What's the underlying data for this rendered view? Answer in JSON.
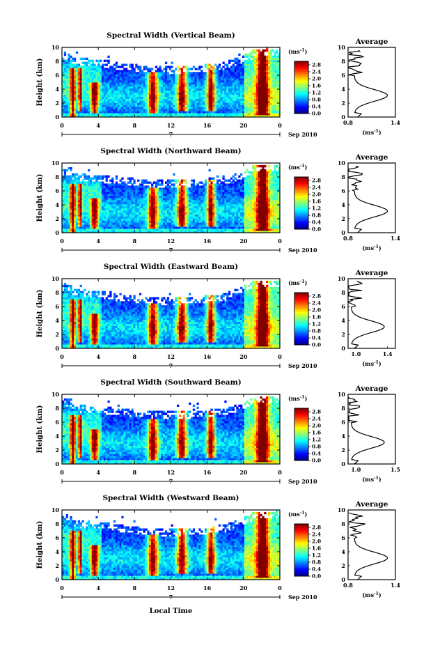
{
  "figure": {
    "x_axis_label": "Local Time",
    "date_label": "Sep 2010",
    "day_label": "7"
  },
  "chart_data": [
    {
      "type": "heatmap",
      "title": "Spectral Width (Vertical Beam)",
      "ylabel": "Height (km)",
      "xlabel": "Local Time",
      "x_ticks": [
        "0",
        "4",
        "8",
        "12",
        "16",
        "20",
        "0"
      ],
      "y_ticks": [
        "0",
        "2",
        "4",
        "6",
        "8",
        "10"
      ],
      "xlim": [
        0,
        24
      ],
      "ylim": [
        0,
        10
      ],
      "colorbar": {
        "unit": "(ms-1)",
        "unit_base": "(ms",
        "unit_sup": "-1",
        "unit_close": ")",
        "ticks": [
          "0.0",
          "0.4",
          "0.8",
          "1.2",
          "1.6",
          "2.0",
          "2.4",
          "2.8"
        ],
        "range": [
          0,
          3.0
        ]
      },
      "profile": {
        "title": "Average",
        "unit": "(ms-1)",
        "x_ticks": [
          "0.8",
          "1.4"
        ],
        "xlim": [
          0.8,
          1.4
        ],
        "ylim": [
          0,
          10
        ]
      }
    },
    {
      "type": "heatmap",
      "title": "Spectral Width (Northward Beam)",
      "ylabel": "Height (km)",
      "xlabel": "Local Time",
      "x_ticks": [
        "0",
        "4",
        "8",
        "12",
        "16",
        "20",
        "0"
      ],
      "y_ticks": [
        "0",
        "2",
        "4",
        "6",
        "8",
        "10"
      ],
      "xlim": [
        0,
        24
      ],
      "ylim": [
        0,
        10
      ],
      "colorbar": {
        "unit": "(ms-1)",
        "unit_base": "(ms",
        "unit_sup": "-1",
        "unit_close": ")",
        "ticks": [
          "0.0",
          "0.4",
          "0.8",
          "1.2",
          "1.6",
          "2.0",
          "2.4",
          "2.8"
        ],
        "range": [
          0,
          3.0
        ]
      },
      "profile": {
        "title": "Average",
        "unit": "(ms-1)",
        "x_ticks": [
          "0.8",
          "1.4"
        ],
        "xlim": [
          0.8,
          1.4
        ],
        "ylim": [
          0,
          10
        ]
      }
    },
    {
      "type": "heatmap",
      "title": "Spectral Width (Eastward Beam)",
      "ylabel": "Height (km)",
      "xlabel": "Local Time",
      "x_ticks": [
        "0",
        "4",
        "8",
        "12",
        "16",
        "20",
        "0"
      ],
      "y_ticks": [
        "0",
        "2",
        "4",
        "6",
        "8",
        "10"
      ],
      "xlim": [
        0,
        24
      ],
      "ylim": [
        0,
        10
      ],
      "colorbar": {
        "unit": "(ms-1)",
        "unit_base": "(ms",
        "unit_sup": "-1",
        "unit_close": ")",
        "ticks": [
          "0.0",
          "0.4",
          "0.8",
          "1.2",
          "1.6",
          "2.0",
          "2.4",
          "2.8"
        ],
        "range": [
          0,
          3.0
        ]
      },
      "profile": {
        "title": "Average",
        "unit": "(ms-1)",
        "x_ticks": [
          "1.0",
          "1.4"
        ],
        "xlim": [
          0.9,
          1.5
        ],
        "ylim": [
          0,
          10
        ]
      }
    },
    {
      "type": "heatmap",
      "title": "Spectral Width (Southward Beam)",
      "ylabel": "Height (km)",
      "xlabel": "Local Time",
      "x_ticks": [
        "0",
        "4",
        "8",
        "12",
        "16",
        "20",
        "0"
      ],
      "y_ticks": [
        "0",
        "2",
        "4",
        "6",
        "8",
        "10"
      ],
      "xlim": [
        0,
        24
      ],
      "ylim": [
        0,
        10
      ],
      "colorbar": {
        "unit": "(ms-1)",
        "unit_base": "(ms",
        "unit_sup": "-1",
        "unit_close": ")",
        "ticks": [
          "0.0",
          "0.4",
          "0.8",
          "1.2",
          "1.6",
          "2.0",
          "2.4",
          "2.8"
        ],
        "range": [
          0,
          3.0
        ]
      },
      "profile": {
        "title": "Average",
        "unit": "(ms-1)",
        "x_ticks": [
          "1.0",
          "1.5"
        ],
        "xlim": [
          0.9,
          1.5
        ],
        "ylim": [
          0,
          10
        ]
      }
    },
    {
      "type": "heatmap",
      "title": "Spectral Width (Westward Beam)",
      "ylabel": "Height (km)",
      "xlabel": "Local Time",
      "x_ticks": [
        "0",
        "4",
        "8",
        "12",
        "16",
        "20",
        "0"
      ],
      "y_ticks": [
        "0",
        "2",
        "4",
        "6",
        "8",
        "10"
      ],
      "xlim": [
        0,
        24
      ],
      "ylim": [
        0,
        10
      ],
      "colorbar": {
        "unit": "(ms-1)",
        "unit_base": "(ms",
        "unit_sup": "-1",
        "unit_close": ")",
        "ticks": [
          "0.0",
          "0.4",
          "0.8",
          "1.2",
          "1.6",
          "2.0",
          "2.4",
          "2.8"
        ],
        "range": [
          0,
          3.0
        ]
      },
      "profile": {
        "title": "Average",
        "unit": "(ms-1)",
        "x_ticks": [
          "0.8",
          "1.4"
        ],
        "xlim": [
          0.8,
          1.4
        ],
        "ylim": [
          0,
          10
        ]
      }
    }
  ]
}
